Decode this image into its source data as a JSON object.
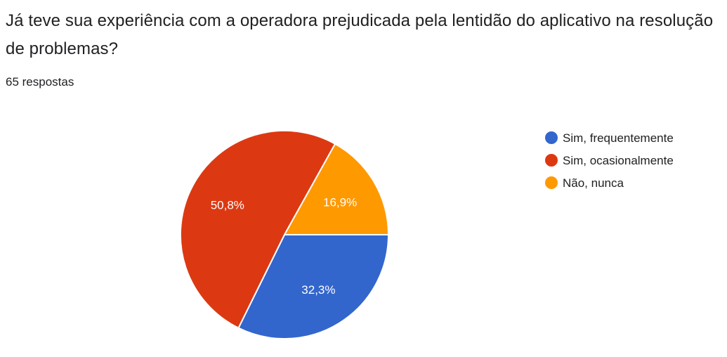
{
  "question": {
    "title": "Já teve sua experiência com a operadora prejudicada pela lentidão do aplicativo na resolução de problemas?",
    "response_count": "65 respostas"
  },
  "chart_data": {
    "type": "pie",
    "title": "",
    "legend_position": "right",
    "start_angle": "90-degrees-counterclockwise-from-3-oclock",
    "slices": [
      {
        "label": "Sim, frequentemente",
        "value": 32.3,
        "display": "32,3%",
        "color": "#3366cc"
      },
      {
        "label": "Sim, ocasionalmente",
        "value": 50.8,
        "display": "50,8%",
        "color": "#dc3912"
      },
      {
        "label": "Não, nunca",
        "value": 16.9,
        "display": "16,9%",
        "color": "#ff9900"
      }
    ]
  }
}
